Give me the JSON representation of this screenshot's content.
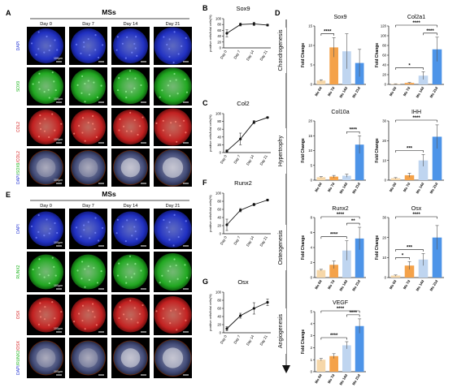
{
  "panelA": {
    "letter": "A",
    "group": "MSs",
    "days": [
      "Day 0",
      "Day 7",
      "Day 14",
      "Day 21"
    ],
    "rows": [
      {
        "label": "DAPI",
        "color": "#2a3bd6"
      },
      {
        "label": "SOX9",
        "color": "#1fb51f"
      },
      {
        "label": "COL2",
        "color": "#d62020"
      },
      {
        "label": "DAPI/SOX9/COL2",
        "parts": [
          "DAPI",
          "SOX9",
          "COL2"
        ],
        "colors": [
          "#2a3bd6",
          "#1fb51f",
          "#d62020"
        ]
      }
    ],
    "scale_label": "100μm"
  },
  "panelE": {
    "letter": "E",
    "group": "MSs",
    "days": [
      "Day 0",
      "Day 7",
      "Day 14",
      "Day 21"
    ],
    "rows": [
      {
        "label": "DAPI",
        "color": "#2a3bd6"
      },
      {
        "label": "RUNX2",
        "color": "#1fb51f"
      },
      {
        "label": "OSX",
        "color": "#d62020"
      },
      {
        "label": "DAPI/RUNX2/OSX",
        "parts": [
          "DAPI",
          "RUNX2",
          "OSX"
        ],
        "colors": [
          "#2a3bd6",
          "#1fb51f",
          "#d62020"
        ]
      }
    ],
    "scale_label": "100μm"
  },
  "line_charts": [
    {
      "letter": "B",
      "title": "Sox9",
      "ylabel": "positive cells/total cells(%)",
      "categories": [
        "Day 0",
        "Day 7",
        "Day 14",
        "Day 21"
      ],
      "values": [
        50,
        80,
        82,
        78
      ],
      "errors": [
        12,
        5,
        6,
        3
      ],
      "ylim": [
        0,
        100
      ],
      "yticks": [
        0,
        20,
        40,
        60,
        80,
        100
      ]
    },
    {
      "letter": "C",
      "title": "Col2",
      "ylabel": "positive cells/total cells(%)",
      "categories": [
        "Day 0",
        "Day 7",
        "Day 14",
        "Day 21"
      ],
      "values": [
        4,
        35,
        78,
        90
      ],
      "errors": [
        3,
        15,
        4,
        2
      ],
      "ylim": [
        0,
        100
      ],
      "yticks": [
        0,
        20,
        40,
        60,
        80,
        100
      ]
    },
    {
      "letter": "F",
      "title": "Runx2",
      "ylabel": "positive cells/total cells(%)",
      "categories": [
        "Day 0",
        "Day 7",
        "Day 14",
        "Day 21"
      ],
      "values": [
        22,
        58,
        72,
        83
      ],
      "errors": [
        14,
        4,
        3,
        2
      ],
      "ylim": [
        0,
        100
      ],
      "yticks": [
        0,
        20,
        40,
        60,
        80,
        100
      ]
    },
    {
      "letter": "G",
      "title": "Osx",
      "ylabel": "positive cells/total cells(%)",
      "categories": [
        "Day 0",
        "Day 7",
        "Day 14",
        "Day 21"
      ],
      "values": [
        10,
        42,
        60,
        75
      ],
      "errors": [
        5,
        6,
        14,
        8
      ],
      "ylim": [
        0,
        100
      ],
      "yticks": [
        0,
        20,
        40,
        60,
        80,
        100
      ]
    }
  ],
  "panelD": {
    "letter": "D",
    "sections": [
      "Chondrogenesis",
      "Hypertrophy",
      "Osteogenesis",
      "Angiogenesis"
    ],
    "bar_colors": [
      "#f6d7a9",
      "#f4a24a",
      "#bfd5f0",
      "#4d94e8"
    ],
    "ylabel": "Fold Change",
    "categories": [
      "Ms 0d",
      "Ms 7d",
      "Ms 14d",
      "Ms 21d"
    ]
  },
  "chart_data": [
    {
      "type": "line",
      "title": "Sox9",
      "categories": [
        "Day 0",
        "Day 7",
        "Day 14",
        "Day 21"
      ],
      "values": [
        50,
        80,
        82,
        78
      ],
      "ylabel": "positive cells/total cells(%)",
      "ylim": [
        0,
        100
      ]
    },
    {
      "type": "line",
      "title": "Col2",
      "categories": [
        "Day 0",
        "Day 7",
        "Day 14",
        "Day 21"
      ],
      "values": [
        4,
        35,
        78,
        90
      ],
      "ylabel": "positive cells/total cells(%)",
      "ylim": [
        0,
        100
      ]
    },
    {
      "type": "line",
      "title": "Runx2",
      "categories": [
        "Day 0",
        "Day 7",
        "Day 14",
        "Day 21"
      ],
      "values": [
        22,
        58,
        72,
        83
      ],
      "ylabel": "positive cells/total cells(%)",
      "ylim": [
        0,
        100
      ]
    },
    {
      "type": "line",
      "title": "Osx",
      "categories": [
        "Day 0",
        "Day 7",
        "Day 14",
        "Day 21"
      ],
      "values": [
        10,
        42,
        60,
        75
      ],
      "ylabel": "positive cells/total cells(%)",
      "ylim": [
        0,
        100
      ]
    },
    {
      "type": "bar",
      "title": "Sox9",
      "categories": [
        "Ms 0d",
        "Ms 7d",
        "Ms 14d",
        "Ms 21d"
      ],
      "values": [
        1,
        9.5,
        8.5,
        5.5
      ],
      "errors": [
        0.2,
        2.5,
        4.5,
        3.5
      ],
      "ylabel": "Fold Change",
      "ylim": [
        0,
        15
      ],
      "yticks": [
        0,
        5,
        10,
        15
      ],
      "sig": [
        {
          "from": 0,
          "to": 1,
          "label": "****"
        }
      ]
    },
    {
      "type": "bar",
      "title": "Col2a1",
      "categories": [
        "Ms 0d",
        "Ms 7d",
        "Ms 14d",
        "Ms 21d"
      ],
      "values": [
        1,
        3,
        18,
        72
      ],
      "errors": [
        0.3,
        1,
        8,
        25
      ],
      "ylabel": "Fold Change",
      "ylim": [
        0,
        120
      ],
      "yticks": [
        0,
        20,
        40,
        60,
        80,
        100,
        120
      ],
      "sig": [
        {
          "from": 0,
          "to": 2,
          "label": "*"
        },
        {
          "from": 2,
          "to": 3,
          "label": "****"
        },
        {
          "from": 0,
          "to": 3,
          "label": "****"
        }
      ]
    },
    {
      "type": "bar",
      "title": "Col10a",
      "categories": [
        "Ms 0d",
        "Ms 7d",
        "Ms 14d",
        "Ms 21d"
      ],
      "values": [
        1,
        1.2,
        1.5,
        12
      ],
      "errors": [
        0.2,
        0.4,
        0.5,
        3
      ],
      "ylabel": "Fold Change",
      "ylim": [
        0,
        20
      ],
      "yticks": [
        0,
        5,
        10,
        15,
        20
      ],
      "sig": [
        {
          "from": 2,
          "to": 3,
          "label": "****"
        }
      ]
    },
    {
      "type": "bar",
      "title": "IHH",
      "categories": [
        "Ms 0d",
        "Ms 7d",
        "Ms 14d",
        "Ms 21d"
      ],
      "values": [
        1,
        2.5,
        10,
        22
      ],
      "errors": [
        0.3,
        1,
        3,
        6
      ],
      "ylabel": "Fold Change",
      "ylim": [
        0,
        30
      ],
      "yticks": [
        0,
        10,
        20,
        30
      ],
      "sig": [
        {
          "from": 0,
          "to": 2,
          "label": "***"
        },
        {
          "from": 0,
          "to": 3,
          "label": "****"
        }
      ]
    },
    {
      "type": "bar",
      "title": "Runx2",
      "categories": [
        "Ms 0d",
        "Ms 7d",
        "Ms 14d",
        "Ms 21d"
      ],
      "values": [
        1,
        1.7,
        3.6,
        5.2
      ],
      "errors": [
        0.1,
        0.5,
        1.3,
        1.5
      ],
      "ylabel": "Fold Change",
      "ylim": [
        0,
        8
      ],
      "yticks": [
        0,
        2,
        4,
        6,
        8
      ],
      "sig": [
        {
          "from": 0,
          "to": 2,
          "label": "****"
        },
        {
          "from": 2,
          "to": 3,
          "label": "**"
        },
        {
          "from": 0,
          "to": 3,
          "label": "****"
        }
      ]
    },
    {
      "type": "bar",
      "title": "Osx",
      "categories": [
        "Ms 0d",
        "Ms 7d",
        "Ms 14d",
        "Ms 21d"
      ],
      "values": [
        1,
        6,
        9,
        20
      ],
      "errors": [
        0.3,
        2,
        3,
        6
      ],
      "ylabel": "Fold Change",
      "ylim": [
        0,
        30
      ],
      "yticks": [
        0,
        10,
        20,
        30
      ],
      "sig": [
        {
          "from": 0,
          "to": 1,
          "label": "*"
        },
        {
          "from": 0,
          "to": 2,
          "label": "***"
        },
        {
          "from": 0,
          "to": 3,
          "label": "****"
        }
      ]
    },
    {
      "type": "bar",
      "title": "VEGF",
      "categories": [
        "Ms 0d",
        "Ms 7d",
        "Ms 14d",
        "Ms 21d"
      ],
      "values": [
        1,
        1.3,
        2.2,
        3.8
      ],
      "errors": [
        0.1,
        0.2,
        0.3,
        0.6
      ],
      "ylabel": "Fold Change",
      "ylim": [
        0,
        5
      ],
      "yticks": [
        0,
        1,
        2,
        3,
        4,
        5
      ],
      "sig": [
        {
          "from": 0,
          "to": 2,
          "label": "****"
        },
        {
          "from": 2,
          "to": 3,
          "label": "****"
        },
        {
          "from": 0,
          "to": 3,
          "label": "****"
        }
      ]
    }
  ]
}
